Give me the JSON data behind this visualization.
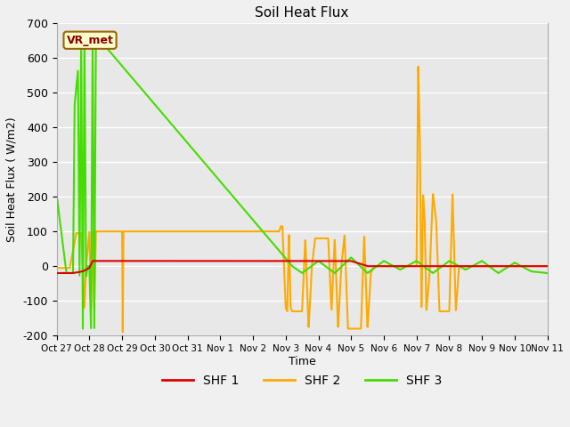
{
  "title": "Soil Heat Flux",
  "ylabel": "Soil Heat Flux ( W/m2)",
  "xlabel": "Time",
  "ylim": [
    -200,
    700
  ],
  "yticks": [
    -200,
    -100,
    0,
    100,
    200,
    300,
    400,
    500,
    600,
    700
  ],
  "xtick_labels": [
    "Oct 27",
    "Oct 28",
    "Oct 29",
    "Oct 30",
    "Oct 31",
    "Nov 1",
    "Nov 2",
    "Nov 3",
    "Nov 4",
    "Nov 5",
    "Nov 6",
    "Nov 7",
    "Nov 8",
    "Nov 9",
    "Nov 10",
    "Nov 11"
  ],
  "annotation": "VR_met",
  "shf1_color": "#dd0000",
  "shf2_color": "#ffaa00",
  "shf3_color": "#44dd00",
  "plot_bg_color": "#e8e8e8",
  "fig_bg_color": "#f0f0f0",
  "grid_color": "#ffffff"
}
